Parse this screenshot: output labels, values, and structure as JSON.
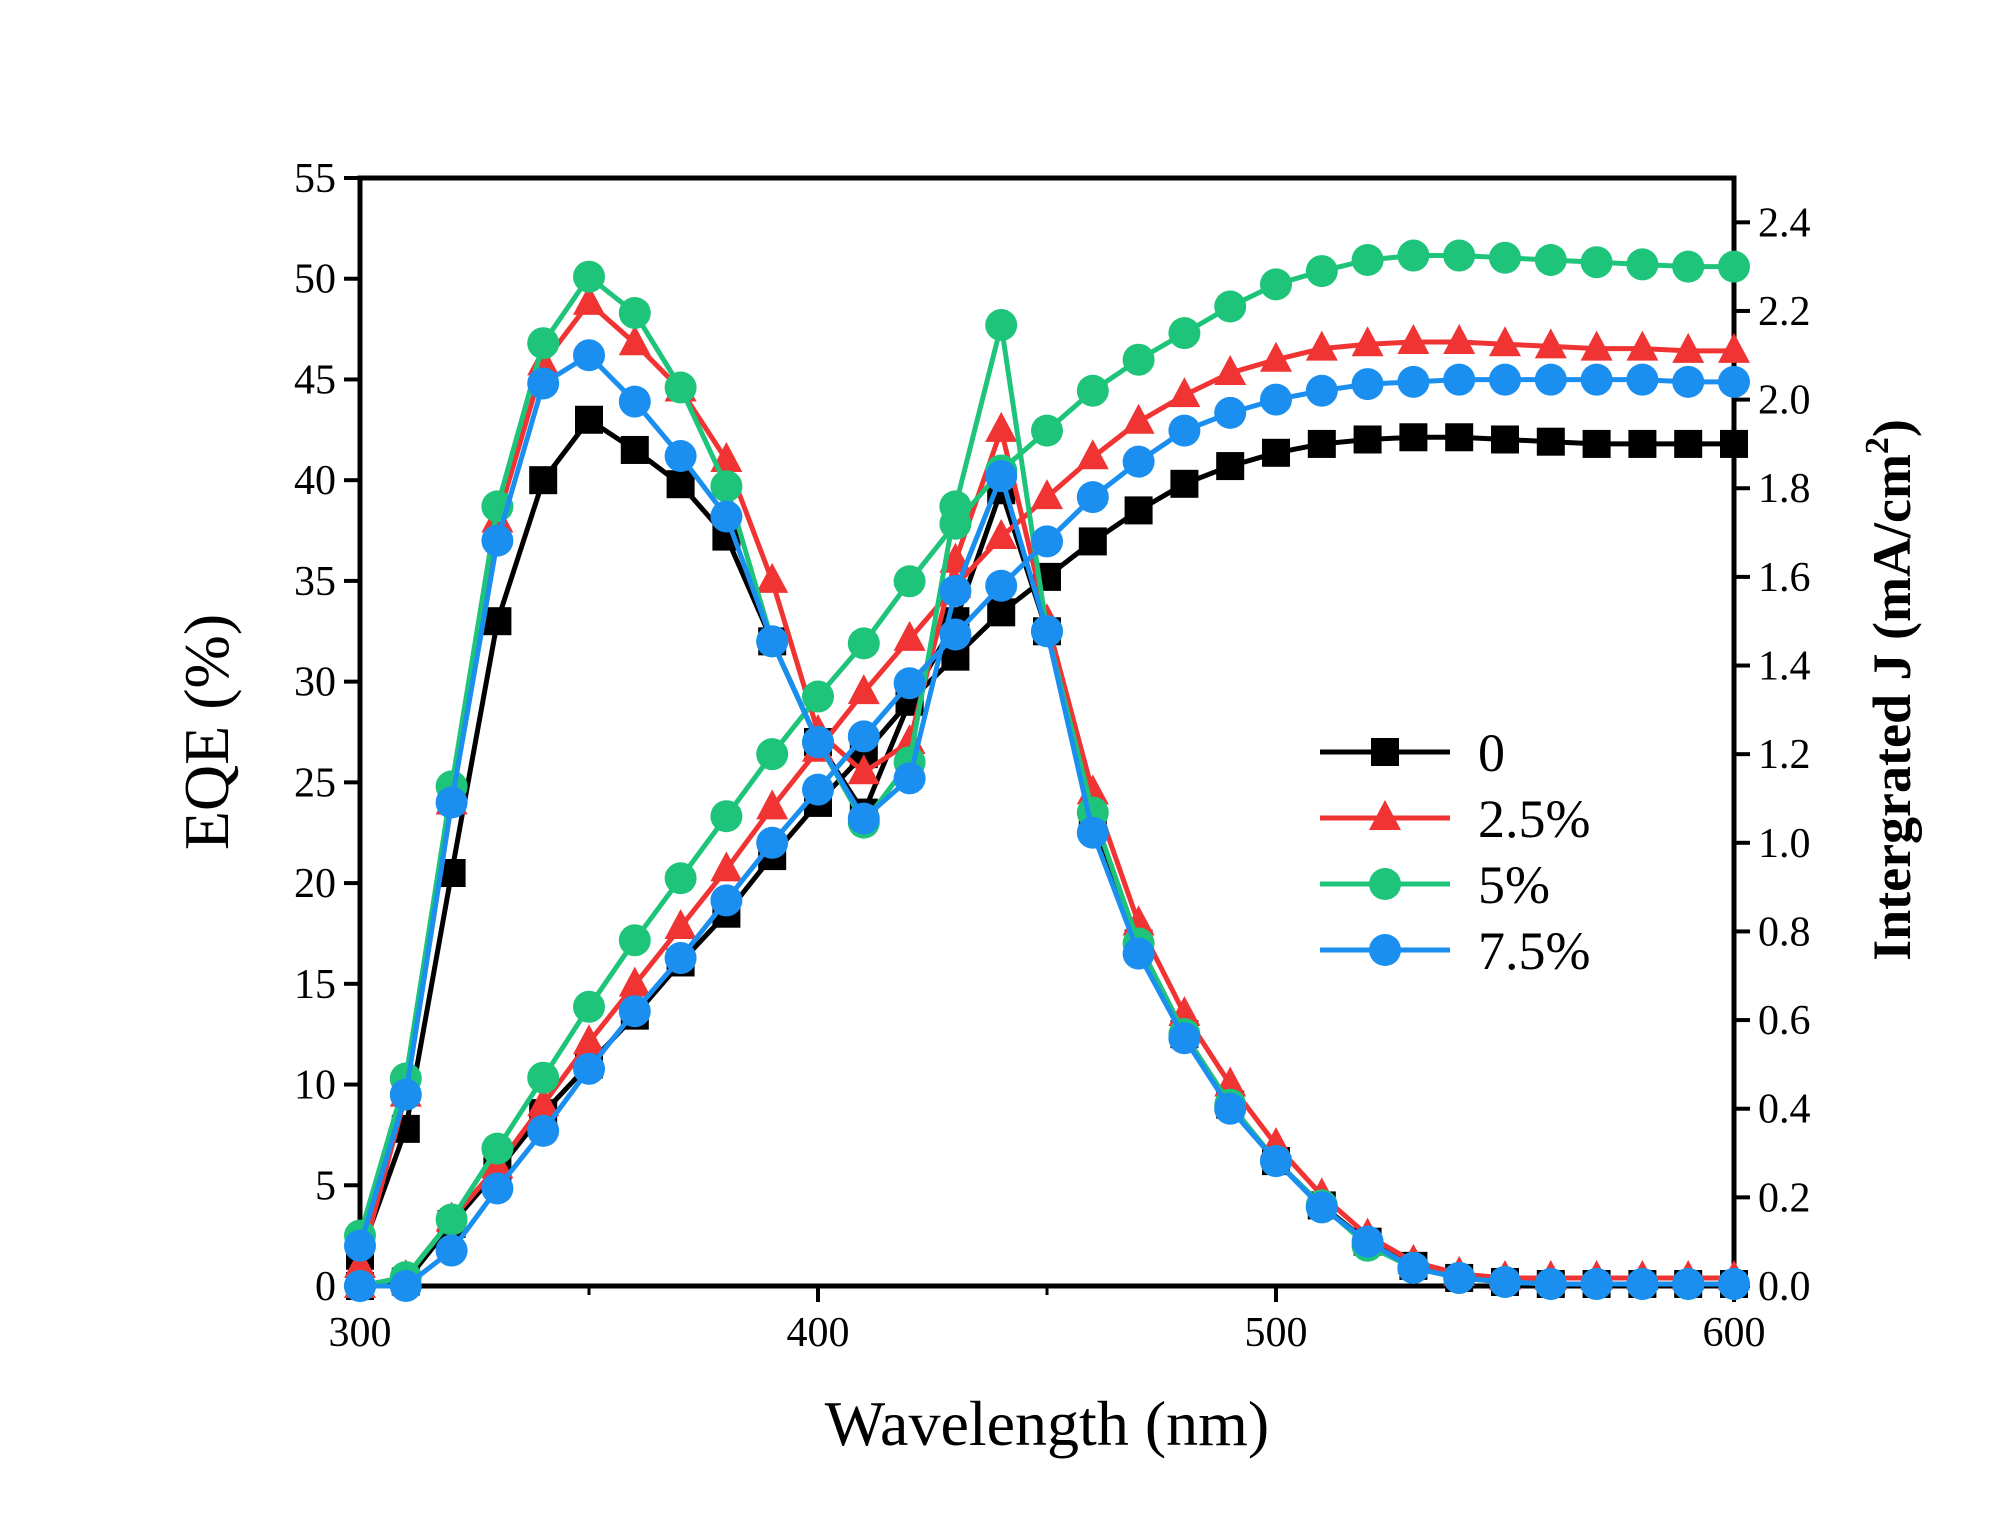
{
  "chart_data": {
    "type": "line",
    "xlabel": "Wavelength (nm)",
    "ylabel": "EQE (%)",
    "y2label": "Intergrated J (mA/cm",
    "y2label_sup": "2",
    "y2label_close": ")",
    "xlim": [
      300,
      600
    ],
    "ylim": [
      0,
      55
    ],
    "y2lim": [
      0,
      2.5
    ],
    "x_ticks": [
      "300",
      "400",
      "500",
      "600"
    ],
    "x_tick_values": [
      300,
      400,
      500,
      600
    ],
    "y_ticks": [
      "0",
      "5",
      "10",
      "15",
      "20",
      "25",
      "30",
      "35",
      "40",
      "45",
      "50",
      "55"
    ],
    "y_tick_values": [
      0,
      5,
      10,
      15,
      20,
      25,
      30,
      35,
      40,
      45,
      50,
      55
    ],
    "y2_ticks": [
      "0.0",
      "0.2",
      "0.4",
      "0.6",
      "0.8",
      "1.0",
      "1.2",
      "1.4",
      "1.6",
      "1.8",
      "2.0",
      "2.2",
      "2.4"
    ],
    "y2_tick_values": [
      0,
      0.2,
      0.4,
      0.6,
      0.8,
      1.0,
      1.2,
      1.4,
      1.6,
      1.8,
      2.0,
      2.2,
      2.4
    ],
    "legend_position": "center-right",
    "x": [
      300,
      310,
      320,
      330,
      340,
      350,
      360,
      370,
      380,
      390,
      400,
      410,
      420,
      430,
      440,
      450,
      460,
      470,
      480,
      490,
      500,
      510,
      520,
      530,
      540,
      550,
      560,
      570,
      580,
      590,
      600
    ],
    "series": [
      {
        "name": "0",
        "color": "#000000",
        "marker": "square",
        "eqe": [
          1.5,
          7.8,
          20.5,
          33.0,
          40.0,
          43.0,
          41.5,
          39.8,
          37.2,
          32.0,
          27.0,
          23.5,
          29.0,
          33.0,
          39.5,
          32.5,
          23.0,
          17.0,
          12.5,
          9.0,
          6.2,
          4.0,
          2.2,
          1.0,
          0.4,
          0.2,
          0.1,
          0.1,
          0.1,
          0.1,
          0.1
        ],
        "integrated": [
          0.0,
          0.01,
          0.14,
          0.26,
          0.39,
          0.5,
          0.61,
          0.73,
          0.84,
          0.97,
          1.09,
          1.2,
          1.32,
          1.42,
          1.52,
          1.6,
          1.68,
          1.75,
          1.81,
          1.85,
          1.88,
          1.9,
          1.91,
          1.915,
          1.915,
          1.91,
          1.905,
          1.9,
          1.9,
          1.9,
          1.9
        ]
      },
      {
        "name": "2.5%",
        "color": "#f03434",
        "marker": "triangle",
        "eqe": [
          1.0,
          9.5,
          24.0,
          38.0,
          45.8,
          48.8,
          46.8,
          44.5,
          41.0,
          35.0,
          27.5,
          25.5,
          27.0,
          36.0,
          42.5,
          33.0,
          24.5,
          18.0,
          13.5,
          10.0,
          7.0,
          4.5,
          2.5,
          1.2,
          0.6,
          0.4,
          0.4,
          0.4,
          0.4,
          0.4,
          0.4
        ],
        "integrated": [
          0.0,
          0.02,
          0.15,
          0.27,
          0.41,
          0.55,
          0.68,
          0.81,
          0.94,
          1.08,
          1.21,
          1.34,
          1.46,
          1.58,
          1.69,
          1.78,
          1.87,
          1.95,
          2.01,
          2.06,
          2.09,
          2.115,
          2.125,
          2.13,
          2.13,
          2.125,
          2.12,
          2.115,
          2.115,
          2.11,
          2.11
        ]
      },
      {
        "name": "5%",
        "color": "#1ec47a",
        "marker": "circle",
        "eqe": [
          2.5,
          10.3,
          24.8,
          38.7,
          46.8,
          50.1,
          48.3,
          44.6,
          39.7,
          32.0,
          27.0,
          23.0,
          26.0,
          38.7,
          47.7,
          32.5,
          23.5,
          17.0,
          12.5,
          9.0,
          6.2,
          4.0,
          2.0,
          0.9,
          0.4,
          0.2,
          0.1,
          0.1,
          0.1,
          0.1,
          0.1
        ],
        "integrated": [
          0.0,
          0.02,
          0.15,
          0.31,
          0.47,
          0.63,
          0.78,
          0.92,
          1.06,
          1.2,
          1.33,
          1.45,
          1.59,
          1.72,
          1.84,
          1.93,
          2.02,
          2.09,
          2.15,
          2.21,
          2.26,
          2.29,
          2.315,
          2.325,
          2.325,
          2.32,
          2.315,
          2.31,
          2.305,
          2.3,
          2.3
        ]
      },
      {
        "name": "7.5%",
        "color": "#1a8ff0",
        "marker": "circle",
        "eqe": [
          2.0,
          9.5,
          24.0,
          37.0,
          44.8,
          46.2,
          43.9,
          41.2,
          38.2,
          32.0,
          27.0,
          23.2,
          25.2,
          34.5,
          40.2,
          32.5,
          22.5,
          16.5,
          12.3,
          8.8,
          6.2,
          3.9,
          2.2,
          0.9,
          0.4,
          0.2,
          0.1,
          0.1,
          0.1,
          0.1,
          0.1
        ],
        "integrated": [
          0.0,
          0.0,
          0.08,
          0.22,
          0.35,
          0.49,
          0.62,
          0.74,
          0.87,
          1.0,
          1.12,
          1.24,
          1.36,
          1.47,
          1.58,
          1.68,
          1.78,
          1.86,
          1.93,
          1.97,
          2.0,
          2.02,
          2.035,
          2.04,
          2.045,
          2.045,
          2.045,
          2.045,
          2.045,
          2.04,
          2.04
        ]
      }
    ]
  }
}
